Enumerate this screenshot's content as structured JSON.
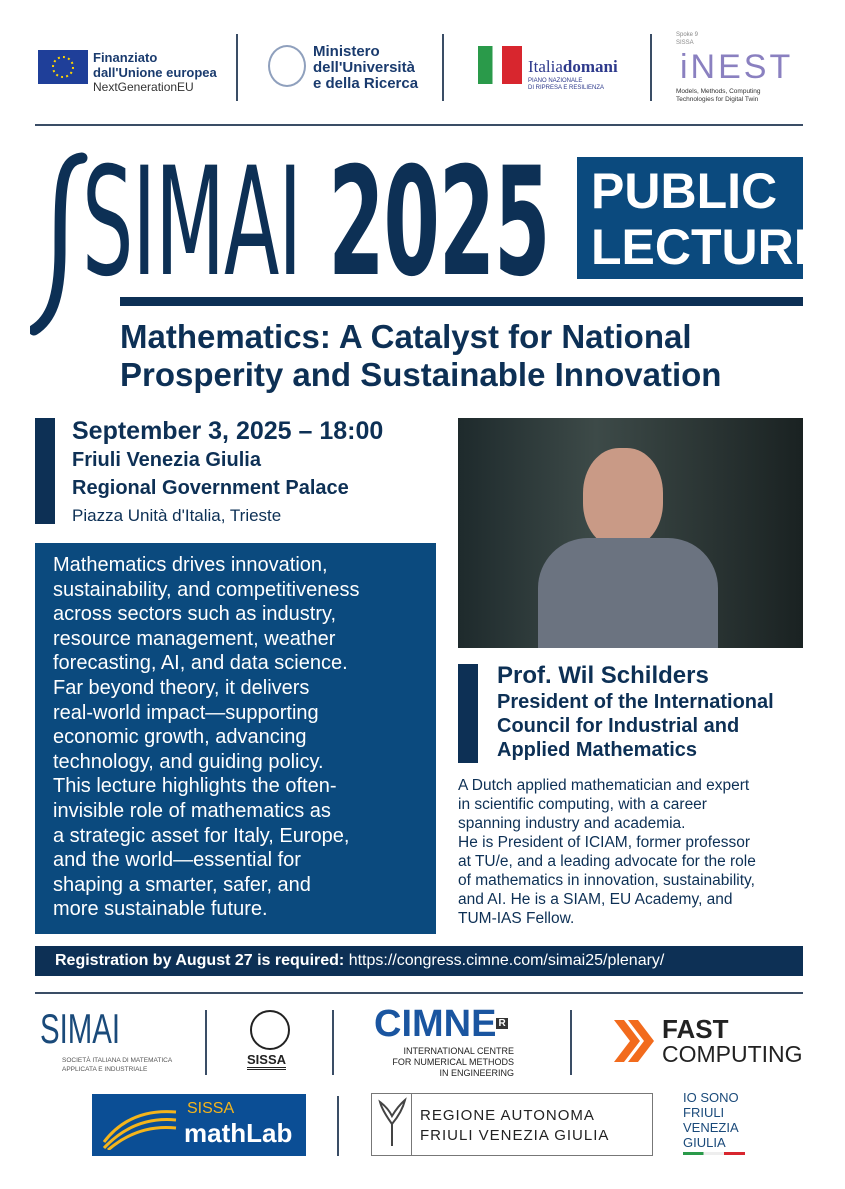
{
  "logos_top": {
    "eu": {
      "line1": "Finanziato",
      "line2": "dall'Unione europea",
      "line3": "NextGenerationEU"
    },
    "mur": {
      "line1": "Ministero",
      "line2": "dell'Università",
      "line3": "e della Ricerca"
    },
    "italiadomani": {
      "name_a": "Italia",
      "name_b": "domani",
      "tag1": "PIANO NAZIONALE",
      "tag2": "DI RIPRESA E RESILIENZA"
    },
    "inest": {
      "spoke": "Spoke 9",
      "sissa": "SISSA",
      "name": "iNEST",
      "tag1": "Models, Methods, Computing",
      "tag2": "Technologies for Digital Twin"
    }
  },
  "header": {
    "brand": "SIMAI",
    "year": "2025",
    "badge_line1": "PUBLIC",
    "badge_line2": "LECTURE"
  },
  "title": {
    "line1": "Mathematics: A Catalyst for National",
    "line2": "Prosperity and Sustainable Innovation"
  },
  "event": {
    "datetime": "September 3, 2025 – 18:00",
    "venue1": "Friuli Venezia Giulia",
    "venue2": "Regional Government Palace",
    "address": "Piazza Unità d'Italia, Trieste"
  },
  "description": [
    "Mathematics drives innovation,",
    "sustainability, and competitiveness",
    "across sectors such as industry,",
    "resource management, weather",
    "forecasting, AI, and data science.",
    "Far beyond theory, it delivers",
    "real-world impact—supporting",
    "economic growth, advancing",
    "technology, and guiding policy.",
    "This lecture highlights the often-",
    "invisible role of mathematics as",
    "a strategic asset for Italy, Europe,",
    "and the world—essential for",
    "shaping a smarter, safer, and",
    "more sustainable future."
  ],
  "speaker": {
    "name": "Prof. Wil Schilders",
    "role1": "President of the International",
    "role2": "Council for Industrial and",
    "role3": "Applied Mathematics",
    "bio": [
      "A Dutch applied mathematician and expert",
      "in scientific computing, with a career",
      "spanning industry and academia.",
      "He is President of ICIAM, former professor",
      "at TU/e, and a leading advocate for the role",
      "of mathematics in innovation, sustainability,",
      "and AI. He is a SIAM, EU Academy, and",
      "TUM-IAS Fellow."
    ]
  },
  "registration": {
    "label": "Registration by August 27 is required:",
    "url": "https://congress.cimne.com/simai25/plenary/"
  },
  "logos_bottom": {
    "simai": {
      "name": "SIMAI",
      "tag1": "SOCIETÀ ITALIANA DI MATEMATICA",
      "tag2": "APPLICATA E INDUSTRIALE"
    },
    "sissa": "SISSA",
    "cimne": {
      "name": "CIMNE",
      "mark": "R",
      "tag1": "INTERNATIONAL CENTRE",
      "tag2": "FOR NUMERICAL METHODS",
      "tag3": "IN ENGINEERING"
    },
    "fast": {
      "line1": "FAST",
      "line2": "COMPUTING"
    },
    "mathlab": {
      "line1": "SISSA",
      "line2": "mathLab"
    },
    "regione": {
      "line1": "REGIONE AUTONOMA",
      "line2": "FRIULI VENEZIA GIULIA"
    },
    "iosono": [
      "IO SONO",
      "FRIULI",
      "VENEZIA",
      "GIULIA"
    ]
  },
  "colors": {
    "navy": "#0d3055",
    "blue": "#0b4a7e",
    "orange": "#f26b1d",
    "mathlab_yellow": "#f5b51b"
  }
}
